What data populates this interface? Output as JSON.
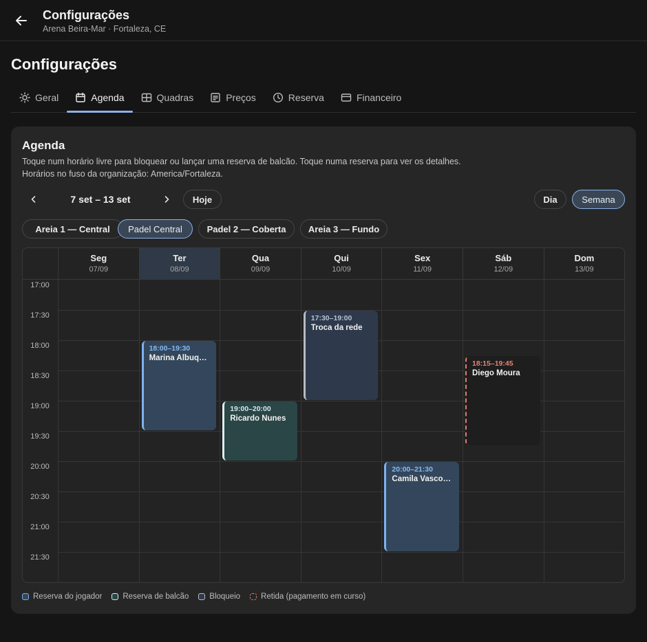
{
  "header": {
    "title": "Configurações",
    "subtitle": "Arena Beira-Mar · Fortaleza, CE"
  },
  "page": {
    "title": "Configurações"
  },
  "tabs": [
    {
      "label": "Geral",
      "icon": "sun-icon"
    },
    {
      "label": "Agenda",
      "icon": "calendar-icon",
      "active": true
    },
    {
      "label": "Quadras",
      "icon": "grid-icon"
    },
    {
      "label": "Preços",
      "icon": "receipt-icon"
    },
    {
      "label": "Reserva",
      "icon": "clock-icon"
    },
    {
      "label": "Financeiro",
      "icon": "card-icon"
    }
  ],
  "agenda": {
    "title": "Agenda",
    "description": "Toque num horário livre para bloquear ou lançar uma reserva de balcão. Toque numa reserva para ver os detalhes.",
    "timezone": "Horários no fuso da organização: America/Fortaleza.",
    "range": "7 set – 13 set",
    "today_label": "Hoje",
    "view_day": "Dia",
    "view_week": "Semana",
    "active_view": "Semana",
    "courts": [
      "Areia 1 — Central",
      "Padel Central",
      "Padel 2 — Coberta",
      "Areia 3 — Fundo"
    ],
    "active_court": "Padel Central",
    "days": [
      {
        "name": "Seg",
        "date": "07/09"
      },
      {
        "name": "Ter",
        "date": "08/09",
        "today": true
      },
      {
        "name": "Qua",
        "date": "09/09"
      },
      {
        "name": "Qui",
        "date": "10/09"
      },
      {
        "name": "Sex",
        "date": "11/09"
      },
      {
        "name": "Sáb",
        "date": "12/09"
      },
      {
        "name": "Dom",
        "date": "13/09"
      }
    ],
    "times": [
      "17:00",
      "17:30",
      "18:00",
      "18:30",
      "19:00",
      "19:30",
      "20:00",
      "20:30",
      "21:00",
      "21:30"
    ],
    "events": [
      {
        "day": 1,
        "start": "18:00",
        "end": "19:30",
        "time": "18:00–19:30",
        "name": "Marina Albuque…",
        "kind": "player"
      },
      {
        "day": 2,
        "start": "19:00",
        "end": "20:00",
        "time": "19:00–20:00",
        "name": "Ricardo Nunes",
        "kind": "counter"
      },
      {
        "day": 3,
        "start": "17:30",
        "end": "19:00",
        "time": "17:30–19:00",
        "name": "Troca da rede",
        "kind": "block"
      },
      {
        "day": 4,
        "start": "20:00",
        "end": "21:30",
        "time": "20:00–21:30",
        "name": "Camila Vascon…",
        "kind": "player"
      },
      {
        "day": 5,
        "start": "18:15",
        "end": "19:45",
        "time": "18:15–19:45",
        "name": "Diego Moura",
        "kind": "held"
      }
    ],
    "legend": [
      {
        "label": "Reserva do jogador",
        "kind": "player"
      },
      {
        "label": "Reserva de balcão",
        "kind": "counter"
      },
      {
        "label": "Bloqueio",
        "kind": "block"
      },
      {
        "label": "Retida (pagamento em curso)",
        "kind": "held"
      }
    ]
  },
  "colors": {
    "accent": "#8ab4e8",
    "player": "#7db2ee",
    "counter": "#dcecef",
    "block": "#b8bcc2",
    "held": "#e47a6e"
  }
}
